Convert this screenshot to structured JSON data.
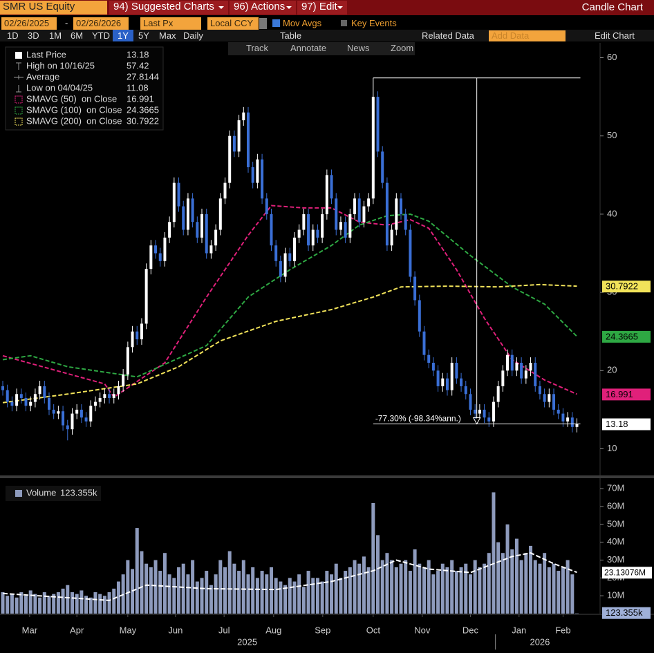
{
  "toolbar": {
    "security": "SMR US Equity",
    "menus": [
      "94) Suggested Charts",
      "96) Actions",
      "97) Edit"
    ],
    "chart_type": "Candle Chart",
    "start_date": "02/26/2025",
    "date_separator": "-",
    "end_date": "02/26/2026",
    "field": "Last Px",
    "currency": "Local CCY",
    "mov_avgs": "Mov Avgs",
    "key_events": "Key Events",
    "periods": [
      "1D",
      "3D",
      "1M",
      "6M",
      "YTD",
      "1Y",
      "5Y",
      "Max"
    ],
    "active_period": "1Y",
    "frequency": "Daily",
    "table": "Table",
    "related_data": "Related Data",
    "add_data": "Add Data",
    "edit_chart": "Edit Chart",
    "tools": [
      "Track",
      "Annotate",
      "News",
      "Zoom"
    ]
  },
  "chart_data": [
    {
      "type": "candlestick",
      "up_color": "#ffffff",
      "down_color": "#3a6fd6",
      "xlim": [
        -0.6,
        129
      ],
      "ylim": [
        6.6,
        61.9
      ],
      "yticks": [
        10,
        20,
        30,
        40,
        50,
        60
      ],
      "legend": [
        {
          "label": "Last Price",
          "value": 13.18
        },
        {
          "label": "High on 10/16/25",
          "value": 57.42
        },
        {
          "label": "Average",
          "value": 27.8144
        },
        {
          "label": "Low on 04/04/25",
          "value": 11.08
        }
      ],
      "annotation": {
        "text": "-77.30% (-98.34%ann.)"
      },
      "open": [
        18,
        17.5,
        16,
        15.5,
        17,
        16.5,
        15.5,
        16,
        17,
        18,
        16.5,
        15,
        14.5,
        14.8,
        13,
        12.5,
        14.5,
        15,
        14,
        13.5,
        15.5,
        16,
        16.5,
        17,
        16.5,
        17,
        18,
        19.5,
        23,
        25,
        24,
        26,
        33,
        36,
        35,
        34,
        37,
        39,
        44,
        41,
        38,
        42,
        39,
        37,
        40,
        35,
        36,
        38,
        42,
        44,
        50,
        48,
        52,
        53,
        46,
        44,
        47,
        42,
        40,
        36,
        34,
        32,
        35,
        34,
        37,
        38,
        40,
        36,
        38,
        37,
        40,
        45,
        42,
        38,
        39,
        37,
        40,
        42,
        39,
        41,
        42,
        55,
        48,
        44,
        36,
        38,
        42,
        40,
        38,
        32,
        29,
        25,
        22,
        21,
        20,
        18,
        19,
        17.5,
        21,
        19,
        18,
        17,
        15,
        14.5,
        15,
        14,
        13.5,
        16,
        18,
        20,
        22,
        20,
        21,
        19,
        20,
        21,
        18,
        17,
        16,
        17,
        15,
        14.5,
        13.5,
        14,
        12.8
      ],
      "high": [
        18.7,
        18.2,
        16.7,
        17.7,
        17.7,
        17.2,
        16.7,
        17.7,
        18.7,
        18.7,
        17.2,
        15.7,
        15.5,
        15.5,
        13.7,
        15.2,
        15.7,
        15.7,
        14.7,
        16.2,
        16.7,
        17.2,
        17.7,
        17.7,
        17.7,
        18.7,
        20.2,
        23.7,
        25.7,
        25.7,
        26.7,
        33.7,
        36.7,
        36.7,
        35.7,
        37.7,
        39.7,
        44.7,
        44.7,
        41.7,
        42.7,
        42.7,
        39.7,
        40.7,
        40.7,
        36.7,
        38.7,
        42.7,
        44.7,
        50.7,
        50.7,
        52.7,
        53.7,
        53.7,
        46.7,
        47.7,
        47.7,
        42.7,
        40.7,
        36.7,
        34.7,
        35.7,
        35.7,
        37.7,
        38.7,
        40.7,
        40.7,
        38.7,
        38.7,
        40.7,
        45.7,
        45.7,
        42.7,
        39.7,
        39.7,
        40.7,
        42.7,
        42.7,
        41.7,
        42.7,
        57.42,
        55.7,
        48.7,
        44.7,
        38.7,
        42.7,
        42.7,
        40.7,
        38.7,
        32.7,
        29.7,
        25.7,
        22.7,
        21.7,
        20.7,
        19.7,
        19.7,
        21.7,
        21.7,
        19.7,
        18.7,
        17.7,
        15.7,
        15.7,
        15.7,
        14.7,
        16.7,
        18.7,
        20.7,
        22.7,
        22.7,
        21.7,
        21.7,
        20.7,
        21.7,
        21.7,
        18.7,
        17.7,
        17.7,
        17.7,
        15.7,
        15.2,
        14.7,
        14.7,
        13.9
      ],
      "low": [
        16.8,
        15.3,
        14.8,
        14.8,
        15.8,
        14.8,
        14.8,
        15.3,
        16.3,
        15.8,
        14.3,
        13.8,
        13.8,
        12.3,
        11.08,
        11.8,
        13.8,
        13.3,
        12.8,
        12.8,
        14.8,
        15.3,
        15.8,
        15.8,
        15.8,
        16.3,
        17.3,
        18.8,
        22.3,
        23.3,
        23.3,
        25.3,
        32.3,
        34.3,
        33.3,
        33.3,
        36.3,
        38.3,
        40.3,
        37.3,
        37.3,
        38.3,
        36.3,
        36.3,
        34.3,
        34.3,
        35.3,
        37.3,
        41.3,
        43.3,
        47.3,
        47.3,
        51.3,
        45.3,
        43.3,
        43.3,
        41.3,
        39.3,
        35.3,
        33.3,
        31.3,
        31.3,
        33.3,
        33.3,
        36.3,
        37.3,
        35.3,
        35.3,
        36.3,
        36.3,
        39.3,
        41.3,
        37.3,
        37.3,
        36.3,
        36.3,
        39.3,
        38.3,
        38.3,
        40.3,
        41.3,
        47.3,
        43.3,
        35.3,
        35.3,
        37.3,
        39.3,
        37.3,
        31.3,
        28.3,
        24.3,
        21.3,
        20.3,
        19.3,
        17.3,
        17.3,
        16.8,
        16.8,
        18.3,
        17.3,
        16.3,
        14.3,
        13.8,
        13.8,
        13.3,
        12.8,
        12.8,
        15.3,
        17.3,
        19.3,
        19.3,
        19.3,
        18.3,
        18.3,
        19.3,
        17.3,
        16.3,
        15.3,
        15.3,
        14.3,
        13.8,
        12.8,
        12.8,
        12.1,
        12.1
      ],
      "close": [
        17.5,
        16,
        15.5,
        17,
        16.5,
        15.5,
        16,
        17,
        18,
        16.5,
        15,
        14.5,
        14.8,
        13,
        12.5,
        14.5,
        15,
        14,
        13.5,
        15.5,
        16,
        16.5,
        17,
        16.5,
        17,
        18,
        19.5,
        23,
        25,
        24,
        26,
        33,
        36,
        35,
        34,
        37,
        39,
        44,
        41,
        38,
        42,
        39,
        37,
        40,
        35,
        36,
        38,
        42,
        44,
        50,
        48,
        52,
        53,
        46,
        44,
        47,
        42,
        40,
        36,
        34,
        32,
        35,
        34,
        37,
        38,
        40,
        36,
        38,
        37,
        40,
        45,
        42,
        38,
        39,
        37,
        40,
        42,
        39,
        41,
        42,
        55,
        48,
        44,
        36,
        38,
        42,
        40,
        38,
        32,
        29,
        25,
        22,
        21,
        20,
        18,
        19,
        17.5,
        21,
        19,
        18,
        17,
        15,
        14.5,
        15,
        14,
        13.5,
        16,
        18,
        20,
        22,
        20,
        21,
        19,
        20,
        21,
        18,
        17,
        16,
        17,
        15,
        14.5,
        13.5,
        14,
        12.8,
        13.18
      ],
      "series": [
        {
          "name": "SMAVG (50)  on Close",
          "color": "#e0207a",
          "x": [
            0,
            22,
            24,
            35,
            44,
            53,
            58,
            65,
            71,
            77,
            83,
            88,
            92,
            98,
            104,
            110,
            117,
            124
          ],
          "values": [
            21.9,
            18.3,
            16.6,
            21,
            29.4,
            37.3,
            41.1,
            40.8,
            40.8,
            39,
            38.6,
            39.3,
            38.2,
            32.9,
            26.7,
            21.4,
            18.8,
            16.991
          ]
        },
        {
          "name": "SMAVG (100)  on Close",
          "color": "#2ea843",
          "x": [
            0,
            6,
            14,
            29,
            44,
            53,
            62,
            71,
            77,
            83,
            88,
            92,
            101,
            110,
            117,
            124
          ],
          "values": [
            21.4,
            21.9,
            20.5,
            19.2,
            23.2,
            29.4,
            32.9,
            36,
            38.6,
            39.8,
            40,
            39.1,
            34.7,
            30.7,
            28.5,
            24.3665
          ]
        },
        {
          "name": "SMAVG (200)  on Close",
          "color": "#f2e35a",
          "x": [
            0,
            14,
            29,
            38,
            47,
            59,
            71,
            80,
            86,
            96,
            107,
            116,
            124
          ],
          "values": [
            15.9,
            17,
            18.3,
            20.5,
            23.8,
            26.3,
            27.8,
            29.4,
            30.7,
            30.8,
            30.7,
            31,
            30.7922
          ]
        }
      ]
    },
    {
      "type": "bar",
      "name": "Volume",
      "color": "#8e9bbd",
      "box_color": "#9fb0d8",
      "xlim": [
        -0.6,
        129
      ],
      "ylim": [
        0,
        73.6
      ],
      "yticks": [
        {
          "value": 10,
          "label": "10M"
        },
        {
          "value": 20,
          "label": "20M"
        },
        {
          "value": 30,
          "label": "30M"
        },
        {
          "value": 40,
          "label": "40M"
        },
        {
          "value": 50,
          "label": "50M"
        },
        {
          "value": 60,
          "label": "60M"
        },
        {
          "value": 70,
          "label": "70M"
        }
      ],
      "values": [
        12,
        10,
        11,
        9,
        12,
        10,
        13,
        11,
        9,
        12,
        10,
        11,
        12,
        14,
        16,
        12,
        11,
        13,
        10,
        9,
        12,
        11,
        10,
        12,
        14,
        18,
        22,
        30,
        25,
        48,
        35,
        28,
        26,
        30,
        24,
        34,
        22,
        20,
        26,
        28,
        22,
        30,
        18,
        20,
        24,
        16,
        22,
        30,
        26,
        35,
        28,
        24,
        30,
        22,
        26,
        20,
        24,
        22,
        26,
        20,
        18,
        16,
        20,
        18,
        22,
        15,
        24,
        20,
        20,
        18,
        24,
        22,
        28,
        20,
        24,
        26,
        30,
        28,
        32,
        26,
        62,
        44,
        30,
        34,
        30,
        26,
        28,
        30,
        24,
        36,
        28,
        26,
        30,
        22,
        24,
        28,
        26,
        30,
        24,
        26,
        28,
        22,
        30,
        26,
        28,
        34,
        68,
        40,
        34,
        50,
        36,
        42,
        30,
        34,
        38,
        30,
        28,
        34,
        26,
        28,
        24,
        26,
        30,
        22,
        0.123355
      ],
      "last_label": "123.355k",
      "average": {
        "color": "#ffffff",
        "x": [
          0,
          23,
          31,
          44,
          59,
          71,
          80,
          85,
          92,
          101,
          110,
          114,
          119,
          124
        ],
        "values": [
          11.3,
          7.4,
          16,
          14,
          13.5,
          18,
          24,
          30,
          25,
          23,
          32,
          34,
          28,
          23.13076
        ],
        "last_label": "23.13076M"
      },
      "xticks": [
        {
          "value": 5.8,
          "label": "Mar"
        },
        {
          "value": 16,
          "label": "Apr"
        },
        {
          "value": 27,
          "label": "May"
        },
        {
          "value": 37.3,
          "label": "Jun"
        },
        {
          "value": 47.8,
          "label": "Jul"
        },
        {
          "value": 58.5,
          "label": "Aug"
        },
        {
          "value": 69.1,
          "label": "Sep"
        },
        {
          "value": 80,
          "label": "Oct"
        },
        {
          "value": 90.6,
          "label": "Nov"
        },
        {
          "value": 101,
          "label": "Dec"
        },
        {
          "value": 111.5,
          "label": "Jan"
        },
        {
          "value": 121,
          "label": "Feb"
        }
      ],
      "years": [
        {
          "value": 52.8,
          "label": "2025"
        },
        {
          "value": 116,
          "label": "2026"
        }
      ],
      "year_divider": 106.4
    }
  ]
}
